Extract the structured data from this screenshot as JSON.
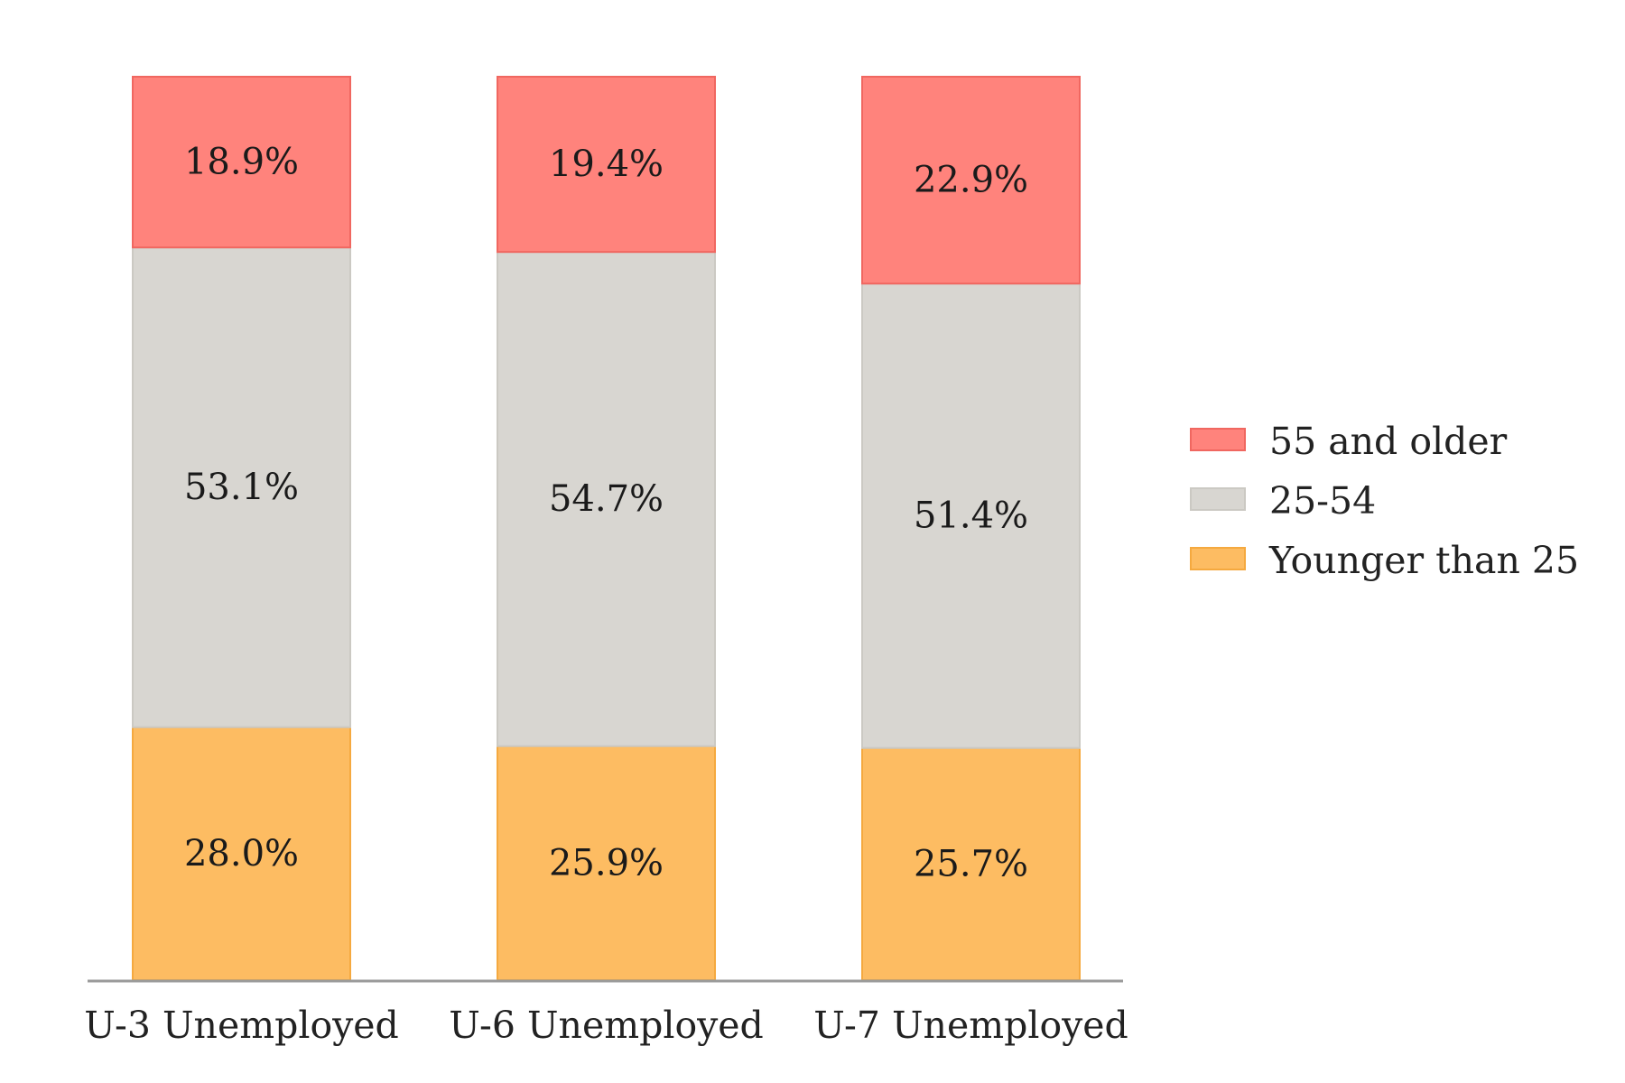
{
  "chart_data": {
    "type": "bar",
    "stacked": true,
    "normalized": true,
    "categories": [
      "U-3 Unemployed",
      "U-6 Unemployed",
      "U-7 Unemployed"
    ],
    "series": [
      {
        "name": "Younger than 25",
        "values": [
          28.0,
          25.9,
          25.7
        ],
        "labels": [
          "28.0%",
          "25.9%",
          "25.7%"
        ],
        "color": "#FDBC62"
      },
      {
        "name": "25-54",
        "values": [
          53.1,
          54.7,
          51.4
        ],
        "labels": [
          "53.1%",
          "54.7%",
          "51.4%"
        ],
        "color": "#D8D6D1"
      },
      {
        "name": "55 and older",
        "values": [
          18.9,
          19.4,
          22.9
        ],
        "labels": [
          "18.9%",
          "19.4%",
          "22.9%"
        ],
        "color": "#FF837C"
      }
    ],
    "legend": {
      "position": "right",
      "order": [
        "55 and older",
        "25-54",
        "Younger than 25"
      ]
    },
    "ylim": [
      0,
      100
    ],
    "grid": false,
    "title": "",
    "xlabel": "",
    "ylabel": ""
  }
}
